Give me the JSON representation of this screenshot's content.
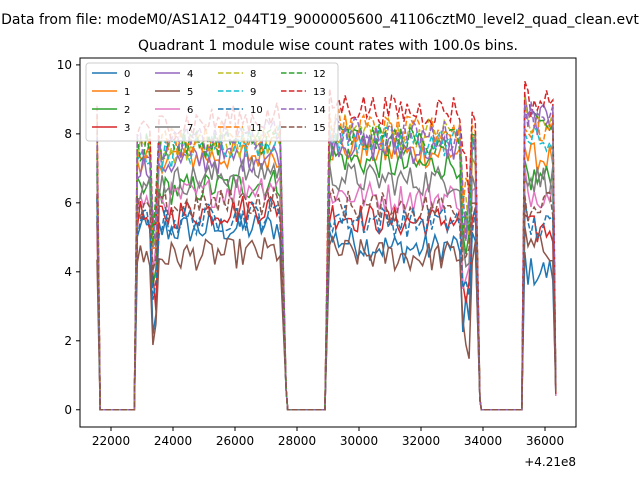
{
  "figure": {
    "suptitle": "Data from file: modeM0/AS1A12_044T19_9000005600_41106cztM0_level2_quad_clean.evt",
    "title": "Quadrant 1 module wise count rates with 100.0s bins."
  },
  "chart_data": {
    "type": "line",
    "title": "Quadrant 1 module wise count rates with 100.0s bins.",
    "xlabel": "",
    "ylabel": "",
    "x_offset_label": "+4.21e8",
    "xlim": [
      21000,
      37000
    ],
    "ylim": [
      -0.5,
      10.2
    ],
    "xticks": [
      22000,
      24000,
      26000,
      28000,
      30000,
      32000,
      34000,
      36000
    ],
    "xtick_labels": [
      "22000",
      "24000",
      "26000",
      "28000",
      "30000",
      "32000",
      "34000",
      "36000"
    ],
    "yticks": [
      0,
      2,
      4,
      6,
      8,
      10
    ],
    "ytick_labels": [
      "0",
      "2",
      "4",
      "6",
      "8",
      "10"
    ],
    "legend_position": "top-left",
    "legend_columns": 4,
    "segments": [
      {
        "start": 21550,
        "drop_end": 21650,
        "gap_end": 22750,
        "rise_end": 22850,
        "end": 27500,
        "final_drop": 27650
      },
      {
        "start": 28900,
        "gap_end": 28900,
        "rise_end": 29050,
        "end": 33800,
        "final_drop": 33900
      },
      {
        "start": 35350,
        "gap_end": 35250,
        "rise_end": 35350,
        "end": 36300,
        "final_drop": 36350
      }
    ],
    "series": [
      {
        "name": "0",
        "color": "#1f77b4",
        "style": "solid",
        "values": [
          5.2,
          5.3,
          5.0,
          4.6,
          4.0
        ]
      },
      {
        "name": "1",
        "color": "#ff7f0e",
        "style": "solid",
        "values": [
          7.3,
          7.4,
          7.6,
          7.4,
          7.3
        ]
      },
      {
        "name": "2",
        "color": "#2ca02c",
        "style": "solid",
        "values": [
          6.3,
          6.6,
          7.4,
          7.0,
          6.7
        ]
      },
      {
        "name": "3",
        "color": "#d62728",
        "style": "solid",
        "values": [
          5.6,
          5.9,
          5.7,
          5.4,
          5.2
        ]
      },
      {
        "name": "4",
        "color": "#9467bd",
        "style": "solid",
        "values": [
          7.1,
          7.4,
          7.8,
          7.5,
          8.4
        ]
      },
      {
        "name": "5",
        "color": "#8c564b",
        "style": "solid",
        "values": [
          4.4,
          4.6,
          4.6,
          4.4,
          4.7
        ]
      },
      {
        "name": "6",
        "color": "#e377c2",
        "style": "solid",
        "values": [
          6.0,
          6.6,
          6.3,
          6.1,
          6.3
        ]
      },
      {
        "name": "7",
        "color": "#7f7f7f",
        "style": "solid",
        "values": [
          6.5,
          7.0,
          6.8,
          6.6,
          6.7
        ]
      },
      {
        "name": "8",
        "color": "#bcbd22",
        "style": "dashed",
        "values": [
          7.4,
          7.8,
          8.2,
          8.0,
          8.3
        ]
      },
      {
        "name": "9",
        "color": "#17becf",
        "style": "dashed",
        "values": [
          7.3,
          7.9,
          7.9,
          7.7,
          7.8
        ]
      },
      {
        "name": "10",
        "color": "#1f77b4",
        "style": "dashed",
        "values": [
          5.4,
          5.7,
          5.6,
          5.4,
          5.3
        ]
      },
      {
        "name": "11",
        "color": "#ff7f0e",
        "style": "dashed",
        "values": [
          7.7,
          8.1,
          8.3,
          8.0,
          8.1
        ]
      },
      {
        "name": "12",
        "color": "#2ca02c",
        "style": "dashed",
        "values": [
          7.6,
          7.9,
          7.9,
          7.8,
          8.2
        ]
      },
      {
        "name": "13",
        "color": "#d62728",
        "style": "dashed",
        "values": [
          8.2,
          8.5,
          8.9,
          8.6,
          8.9
        ]
      },
      {
        "name": "14",
        "color": "#9467bd",
        "style": "dashed",
        "values": [
          7.6,
          8.0,
          8.1,
          7.9,
          8.6
        ]
      },
      {
        "name": "15",
        "color": "#8c564b",
        "style": "dashed",
        "values": [
          5.8,
          6.1,
          6.0,
          5.8,
          5.9
        ]
      }
    ]
  }
}
